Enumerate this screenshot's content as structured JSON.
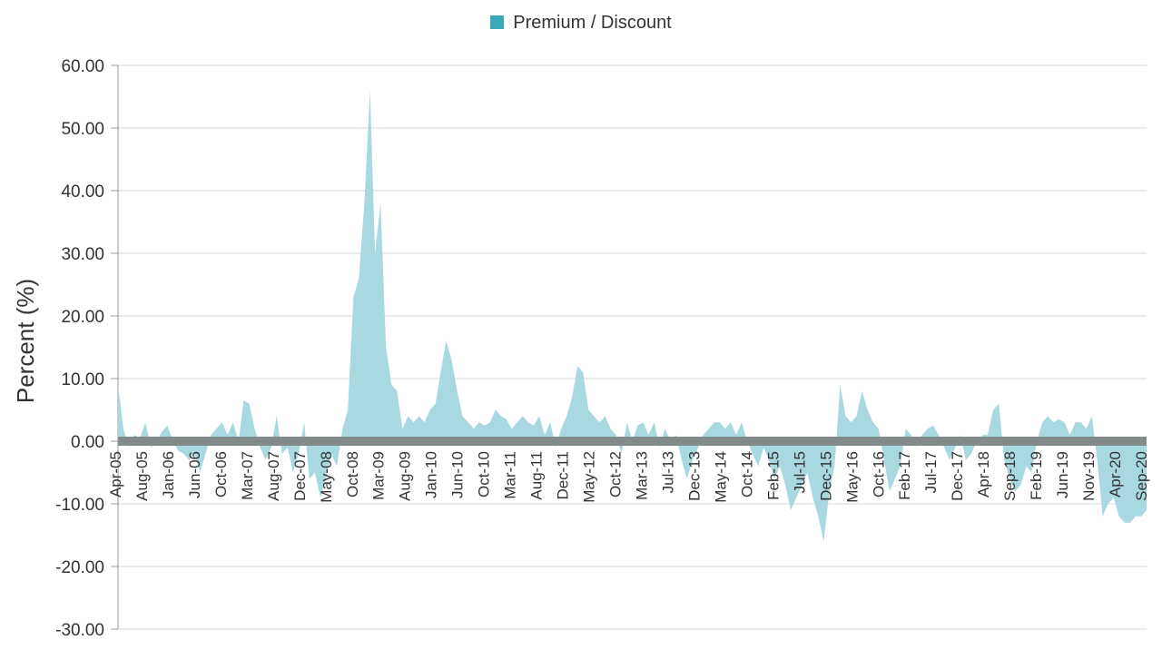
{
  "chart_data": {
    "type": "area",
    "title": "",
    "ylabel": "Percent (%)",
    "xlabel": "",
    "ylim": [
      -30,
      60
    ],
    "yticks": [
      60,
      50,
      40,
      30,
      20,
      10,
      0,
      -10,
      -20,
      -30
    ],
    "ytick_labels": [
      "60.00",
      "50.00",
      "40.00",
      "30.00",
      "20.00",
      "10.00",
      "0.00",
      "-10.00",
      "-20.00",
      "-30.00"
    ],
    "xlim": [
      "2005-04-01",
      "2020-12-01"
    ],
    "xtick_labels": [
      "Apr-05",
      "Aug-05",
      "Jan-06",
      "Jun-06",
      "Oct-06",
      "Mar-07",
      "Aug-07",
      "Dec-07",
      "May-08",
      "Oct-08",
      "Mar-09",
      "Aug-09",
      "Jan-10",
      "Jun-10",
      "Oct-10",
      "Mar-11",
      "Aug-11",
      "Dec-11",
      "May-12",
      "Oct-12",
      "Mar-13",
      "Jul-13",
      "Dec-13",
      "May-14",
      "Oct-14",
      "Feb-15",
      "Jul-15",
      "Dec-15",
      "May-16",
      "Oct-16",
      "Feb-17",
      "Jul-17",
      "Dec-17",
      "Apr-18",
      "Sep-18",
      "Feb-19",
      "Jun-19",
      "Nov-19",
      "Apr-20",
      "Sep-20"
    ],
    "grid": true,
    "legend_position": "top-center",
    "series": [
      {
        "name": "Premium / Discount",
        "color": "#3ba8b8",
        "fill_color": "#a8d8e0",
        "points": [
          [
            "2005-04-01",
            9
          ],
          [
            "2005-05-01",
            2
          ],
          [
            "2005-06-01",
            -1
          ],
          [
            "2005-07-01",
            1
          ],
          [
            "2005-08-01",
            0.5
          ],
          [
            "2005-09-01",
            3
          ],
          [
            "2005-10-01",
            -1
          ],
          [
            "2005-11-01",
            0
          ],
          [
            "2005-12-01",
            1.5
          ],
          [
            "2006-01-01",
            2.5
          ],
          [
            "2006-02-01",
            0
          ],
          [
            "2006-03-01",
            -1.5
          ],
          [
            "2006-04-01",
            -2
          ],
          [
            "2006-05-01",
            -3
          ],
          [
            "2006-06-01",
            -2
          ],
          [
            "2006-07-01",
            -5
          ],
          [
            "2006-08-01",
            -2
          ],
          [
            "2006-09-01",
            1
          ],
          [
            "2006-10-01",
            2
          ],
          [
            "2006-11-01",
            3
          ],
          [
            "2006-12-01",
            1
          ],
          [
            "2007-01-01",
            3
          ],
          [
            "2007-02-01",
            0
          ],
          [
            "2007-03-01",
            6.5
          ],
          [
            "2007-04-01",
            6
          ],
          [
            "2007-05-01",
            2
          ],
          [
            "2007-06-01",
            -1
          ],
          [
            "2007-07-01",
            -3
          ],
          [
            "2007-08-01",
            -1
          ],
          [
            "2007-09-01",
            4
          ],
          [
            "2007-10-01",
            -2
          ],
          [
            "2007-11-01",
            -1
          ],
          [
            "2007-12-01",
            -5
          ],
          [
            "2008-01-01",
            -2
          ],
          [
            "2008-02-01",
            3
          ],
          [
            "2008-03-01",
            -6
          ],
          [
            "2008-04-01",
            -5
          ],
          [
            "2008-05-01",
            -9
          ],
          [
            "2008-06-01",
            -6
          ],
          [
            "2008-07-01",
            -2
          ],
          [
            "2008-08-01",
            -4
          ],
          [
            "2008-09-01",
            2
          ],
          [
            "2008-10-01",
            5
          ],
          [
            "2008-11-01",
            23
          ],
          [
            "2008-12-01",
            26
          ],
          [
            "2009-01-01",
            38
          ],
          [
            "2009-02-01",
            56
          ],
          [
            "2009-03-01",
            30
          ],
          [
            "2009-04-01",
            38
          ],
          [
            "2009-05-01",
            15
          ],
          [
            "2009-06-01",
            9
          ],
          [
            "2009-07-01",
            8
          ],
          [
            "2009-08-01",
            2
          ],
          [
            "2009-09-01",
            4
          ],
          [
            "2009-10-01",
            3
          ],
          [
            "2009-11-01",
            4
          ],
          [
            "2009-12-01",
            3
          ],
          [
            "2010-01-01",
            5
          ],
          [
            "2010-02-01",
            6
          ],
          [
            "2010-03-01",
            11
          ],
          [
            "2010-04-01",
            16
          ],
          [
            "2010-05-01",
            13
          ],
          [
            "2010-06-01",
            8
          ],
          [
            "2010-07-01",
            4
          ],
          [
            "2010-08-01",
            3
          ],
          [
            "2010-09-01",
            2
          ],
          [
            "2010-10-01",
            3
          ],
          [
            "2010-11-01",
            2.5
          ],
          [
            "2010-12-01",
            3
          ],
          [
            "2011-01-01",
            5
          ],
          [
            "2011-02-01",
            4
          ],
          [
            "2011-03-01",
            3.5
          ],
          [
            "2011-04-01",
            2
          ],
          [
            "2011-05-01",
            3
          ],
          [
            "2011-06-01",
            4
          ],
          [
            "2011-07-01",
            3
          ],
          [
            "2011-08-01",
            2.5
          ],
          [
            "2011-09-01",
            4
          ],
          [
            "2011-10-01",
            1
          ],
          [
            "2011-11-01",
            3
          ],
          [
            "2011-12-01",
            -1
          ],
          [
            "2012-01-01",
            2
          ],
          [
            "2012-02-01",
            4
          ],
          [
            "2012-03-01",
            7
          ],
          [
            "2012-04-01",
            12
          ],
          [
            "2012-05-01",
            11
          ],
          [
            "2012-06-01",
            5
          ],
          [
            "2012-07-01",
            4
          ],
          [
            "2012-08-01",
            3
          ],
          [
            "2012-09-01",
            4
          ],
          [
            "2012-10-01",
            2
          ],
          [
            "2012-11-01",
            1
          ],
          [
            "2012-12-01",
            -2
          ],
          [
            "2013-01-01",
            3
          ],
          [
            "2013-02-01",
            0
          ],
          [
            "2013-03-01",
            2.5
          ],
          [
            "2013-04-01",
            3
          ],
          [
            "2013-05-01",
            1
          ],
          [
            "2013-06-01",
            3
          ],
          [
            "2013-07-01",
            -1
          ],
          [
            "2013-08-01",
            2
          ],
          [
            "2013-09-01",
            0
          ],
          [
            "2013-10-01",
            1
          ],
          [
            "2013-11-01",
            -3
          ],
          [
            "2013-12-01",
            -6
          ],
          [
            "2014-01-01",
            -3
          ],
          [
            "2014-02-01",
            -1
          ],
          [
            "2014-03-01",
            1
          ],
          [
            "2014-04-01",
            2
          ],
          [
            "2014-05-01",
            3
          ],
          [
            "2014-06-01",
            3
          ],
          [
            "2014-07-01",
            2
          ],
          [
            "2014-08-01",
            3
          ],
          [
            "2014-09-01",
            1
          ],
          [
            "2014-10-01",
            3
          ],
          [
            "2014-11-01",
            0
          ],
          [
            "2014-12-01",
            -2
          ],
          [
            "2015-01-01",
            -4
          ],
          [
            "2015-02-01",
            -1
          ],
          [
            "2015-03-01",
            -3
          ],
          [
            "2015-04-01",
            -6
          ],
          [
            "2015-05-01",
            -4
          ],
          [
            "2015-06-01",
            -7
          ],
          [
            "2015-07-01",
            -11
          ],
          [
            "2015-08-01",
            -9
          ],
          [
            "2015-09-01",
            -7
          ],
          [
            "2015-10-01",
            -5
          ],
          [
            "2015-11-01",
            -9
          ],
          [
            "2015-12-01",
            -12
          ],
          [
            "2016-01-01",
            -16
          ],
          [
            "2016-02-01",
            -8
          ],
          [
            "2016-03-01",
            -4
          ],
          [
            "2016-04-01",
            9
          ],
          [
            "2016-05-01",
            4
          ],
          [
            "2016-06-01",
            3
          ],
          [
            "2016-07-01",
            4
          ],
          [
            "2016-08-01",
            8
          ],
          [
            "2016-09-01",
            5
          ],
          [
            "2016-10-01",
            3
          ],
          [
            "2016-11-01",
            2
          ],
          [
            "2016-12-01",
            -3
          ],
          [
            "2017-01-01",
            -8
          ],
          [
            "2017-02-01",
            -6
          ],
          [
            "2017-03-01",
            -4
          ],
          [
            "2017-04-01",
            2
          ],
          [
            "2017-05-01",
            1
          ],
          [
            "2017-06-01",
            -1
          ],
          [
            "2017-07-01",
            1
          ],
          [
            "2017-08-01",
            2
          ],
          [
            "2017-09-01",
            2.5
          ],
          [
            "2017-10-01",
            1
          ],
          [
            "2017-11-01",
            -1
          ],
          [
            "2017-12-01",
            -3
          ],
          [
            "2018-01-01",
            -1
          ],
          [
            "2018-02-01",
            1
          ],
          [
            "2018-03-01",
            -3
          ],
          [
            "2018-04-01",
            -2
          ],
          [
            "2018-05-01",
            0
          ],
          [
            "2018-06-01",
            1
          ],
          [
            "2018-07-01",
            1
          ],
          [
            "2018-08-01",
            5
          ],
          [
            "2018-09-01",
            6
          ],
          [
            "2018-10-01",
            -3
          ],
          [
            "2018-11-01",
            -6
          ],
          [
            "2018-12-01",
            -8
          ],
          [
            "2019-01-01",
            -7
          ],
          [
            "2019-02-01",
            -4
          ],
          [
            "2019-03-01",
            -5
          ],
          [
            "2019-04-01",
            0
          ],
          [
            "2019-05-01",
            3
          ],
          [
            "2019-06-01",
            4
          ],
          [
            "2019-07-01",
            3
          ],
          [
            "2019-08-01",
            3.5
          ],
          [
            "2019-09-01",
            3
          ],
          [
            "2019-10-01",
            1
          ],
          [
            "2019-11-01",
            3
          ],
          [
            "2019-12-01",
            3
          ],
          [
            "2020-01-01",
            2
          ],
          [
            "2020-02-01",
            4
          ],
          [
            "2020-03-01",
            -3
          ],
          [
            "2020-04-01",
            -12
          ],
          [
            "2020-05-01",
            -10
          ],
          [
            "2020-06-01",
            -9
          ],
          [
            "2020-07-01",
            -12
          ],
          [
            "2020-08-01",
            -13
          ],
          [
            "2020-09-01",
            -13
          ],
          [
            "2020-10-01",
            -12
          ],
          [
            "2020-11-01",
            -12
          ],
          [
            "2020-12-01",
            -11
          ]
        ]
      }
    ]
  }
}
